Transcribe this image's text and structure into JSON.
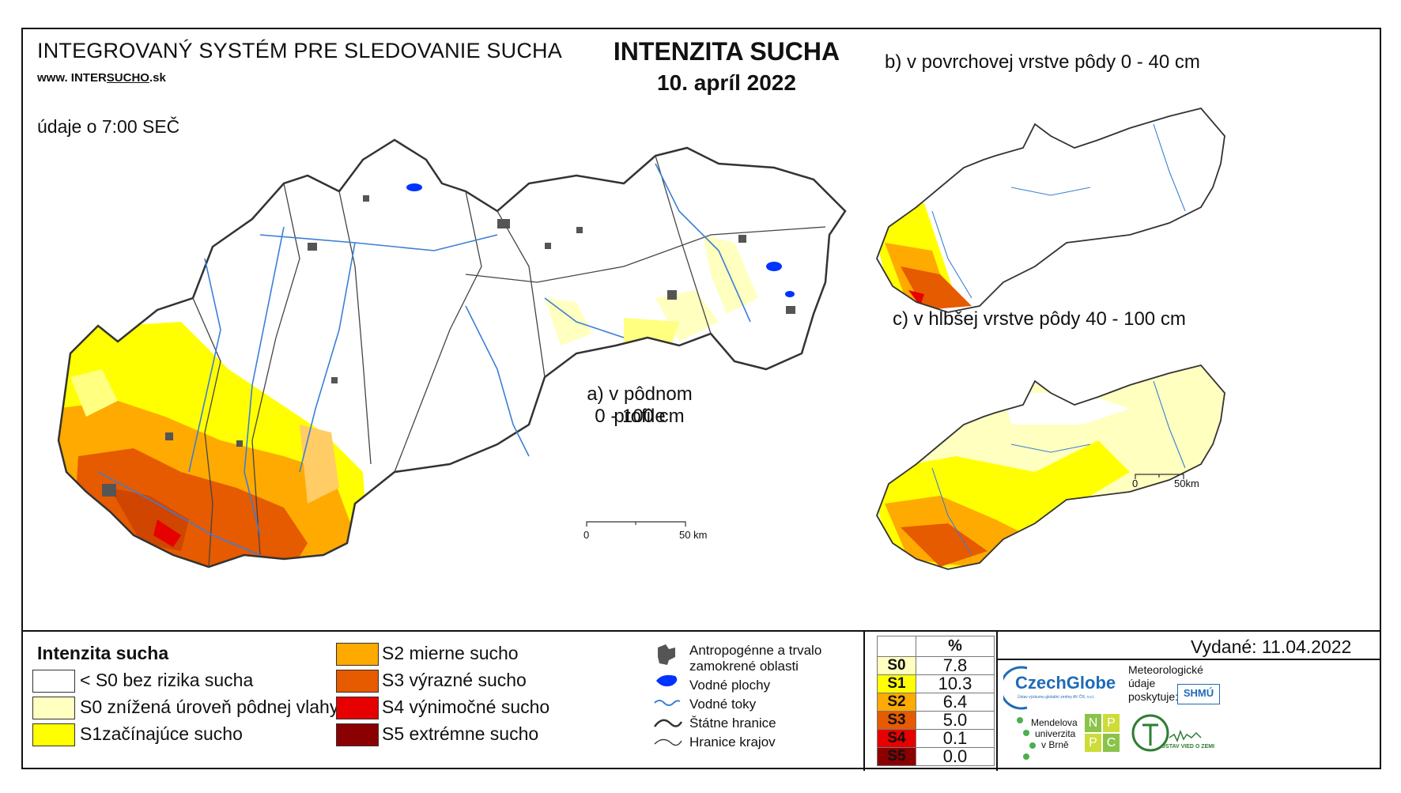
{
  "header": {
    "system_title": "INTEGROVANÝ SYSTÉM PRE SLEDOVANIE SUCHA",
    "url_prefix": "www. INTER",
    "url_underlined": "SUCHO",
    "url_suffix": ".sk",
    "data_time": "údaje o 7:00 SEČ",
    "title": "INTENZITA SUCHA",
    "date": "10. apríl 2022"
  },
  "maps": {
    "main_label_line1": "a) v pôdnom profile",
    "main_label_line2": "0 - 100 cm",
    "b_label": "b) v povrchovej vrstve pôdy 0 - 40 cm",
    "c_label": "c) v hlbšej vrstve pôdy 40 - 100 cm",
    "scale_main_start": "0",
    "scale_main_end": "50 km",
    "scale_small_start": "0",
    "scale_small_end": "50km"
  },
  "legend": {
    "title": "Intenzita sucha",
    "classes": [
      {
        "label": "< S0 bez rizika sucha",
        "color": "#ffffff"
      },
      {
        "label": "S0 znížená úroveň pôdnej vlahy",
        "color": "#ffffc0"
      },
      {
        "label": "S1začínajúce sucho",
        "color": "#ffff00"
      },
      {
        "label": "S2 mierne sucho",
        "color": "#ffaa00"
      },
      {
        "label": "S3 výrazné sucho",
        "color": "#e65a00"
      },
      {
        "label": "S4 výnimočné sucho",
        "color": "#e60000"
      },
      {
        "label": "S5 extrémne sucho",
        "color": "#8b0000"
      }
    ],
    "symbols": {
      "urban_line1": "Antropogénne a trvalo",
      "urban_line2": "zamokrené oblasti",
      "water_bodies": "Vodné plochy",
      "rivers": "Vodné toky",
      "state_border": "Štátne hranice",
      "region_border": "Hranice krajov"
    }
  },
  "percent_table": {
    "header": "%",
    "rows": [
      {
        "cls": "S0",
        "value": "7.8",
        "color": "#ffffc0"
      },
      {
        "cls": "S1",
        "value": "10.3",
        "color": "#ffff00"
      },
      {
        "cls": "S2",
        "value": "6.4",
        "color": "#ffaa00"
      },
      {
        "cls": "S3",
        "value": "5.0",
        "color": "#e65a00"
      },
      {
        "cls": "S4",
        "value": "0.1",
        "color": "#e60000"
      },
      {
        "cls": "S5",
        "value": "0.0",
        "color": "#8b0000"
      }
    ]
  },
  "credits": {
    "issued": "Vydané: 11.04.2022",
    "czechglobe": "CzechGlobe",
    "czechglobe_sub": "Ústav výzkumu globální změny AV ČR, v.v.i.",
    "meteo_line1": "Meteorologické",
    "meteo_line2": "údaje",
    "meteo_line3": "poskytuje:",
    "shmu": "SHMÚ",
    "mendel_line1": "Mendelova",
    "mendel_line2": "univerzita",
    "mendel_line3": "v Brně",
    "nppc": [
      "N",
      "P",
      "P",
      "C"
    ],
    "uvz": "ÚSTAV VIED O ZEMI"
  }
}
